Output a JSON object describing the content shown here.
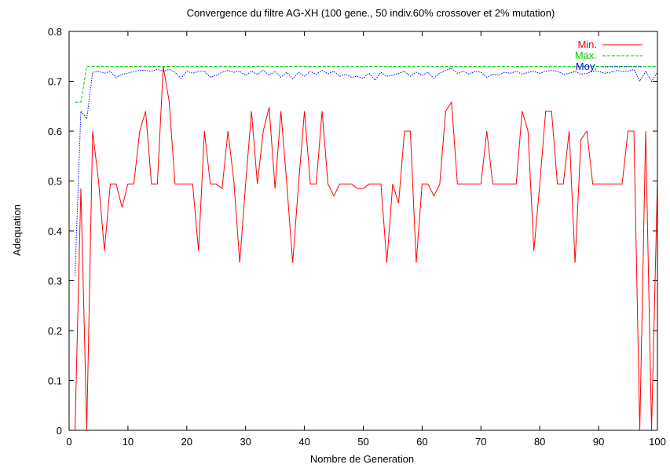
{
  "chart_data": {
    "type": "line",
    "title": "Convergence du filtre AG-XH (100 gene., 50 indiv.60% crossover et 2% mutation)",
    "xlabel": "Nombre de Generation",
    "ylabel": "Adequation",
    "xlim": [
      0,
      100
    ],
    "ylim": [
      0,
      0.8
    ],
    "xticks": [
      "0",
      "10",
      "20",
      "30",
      "40",
      "50",
      "60",
      "70",
      "80",
      "90",
      "100"
    ],
    "yticks": [
      "0",
      "0.1",
      "0.2",
      "0.3",
      "0.4",
      "0.5",
      "0.6",
      "0.7",
      "0.8"
    ],
    "grid": false,
    "legend_position": "top-right",
    "x": [
      1,
      2,
      3,
      4,
      5,
      6,
      7,
      8,
      9,
      10,
      11,
      12,
      13,
      14,
      15,
      16,
      17,
      18,
      19,
      20,
      21,
      22,
      23,
      24,
      25,
      26,
      27,
      28,
      29,
      30,
      31,
      32,
      33,
      34,
      35,
      36,
      37,
      38,
      39,
      40,
      41,
      42,
      43,
      44,
      45,
      46,
      47,
      48,
      49,
      50,
      51,
      52,
      53,
      54,
      55,
      56,
      57,
      58,
      59,
      60,
      61,
      62,
      63,
      64,
      65,
      66,
      67,
      68,
      69,
      70,
      71,
      72,
      73,
      74,
      75,
      76,
      77,
      78,
      79,
      80,
      81,
      82,
      83,
      84,
      85,
      86,
      87,
      88,
      89,
      90,
      91,
      92,
      93,
      94,
      95,
      96,
      97,
      98,
      99,
      100
    ],
    "series": [
      {
        "name": "Min.",
        "color": "#ff0000",
        "dash": "solid",
        "values": [
          0.0,
          0.485,
          0.0,
          0.6,
          0.5,
          0.36,
          0.494,
          0.494,
          0.447,
          0.494,
          0.494,
          0.6,
          0.64,
          0.494,
          0.494,
          0.73,
          0.66,
          0.494,
          0.494,
          0.494,
          0.494,
          0.36,
          0.6,
          0.494,
          0.494,
          0.485,
          0.6,
          0.5,
          0.336,
          0.494,
          0.64,
          0.494,
          0.6,
          0.648,
          0.485,
          0.64,
          0.494,
          0.336,
          0.494,
          0.64,
          0.494,
          0.494,
          0.64,
          0.494,
          0.47,
          0.494,
          0.494,
          0.494,
          0.485,
          0.485,
          0.494,
          0.494,
          0.494,
          0.336,
          0.494,
          0.455,
          0.6,
          0.6,
          0.336,
          0.494,
          0.494,
          0.47,
          0.494,
          0.64,
          0.658,
          0.494,
          0.494,
          0.494,
          0.494,
          0.494,
          0.6,
          0.494,
          0.494,
          0.494,
          0.494,
          0.494,
          0.64,
          0.6,
          0.36,
          0.494,
          0.64,
          0.64,
          0.494,
          0.494,
          0.6,
          0.336,
          0.583,
          0.6,
          0.494,
          0.494,
          0.494,
          0.494,
          0.494,
          0.494,
          0.6,
          0.6,
          0.0,
          0.6,
          0.0,
          0.5
        ]
      },
      {
        "name": "Max.",
        "color": "#00cc00",
        "dash": "dashed",
        "values": [
          0.658,
          0.658,
          0.73,
          0.73,
          0.73,
          0.73,
          0.73,
          0.73,
          0.73,
          0.73,
          0.73,
          0.73,
          0.73,
          0.73,
          0.73,
          0.73,
          0.73,
          0.73,
          0.73,
          0.73,
          0.73,
          0.73,
          0.73,
          0.73,
          0.73,
          0.73,
          0.73,
          0.73,
          0.73,
          0.73,
          0.73,
          0.73,
          0.73,
          0.73,
          0.73,
          0.73,
          0.73,
          0.73,
          0.73,
          0.73,
          0.73,
          0.73,
          0.73,
          0.73,
          0.73,
          0.73,
          0.73,
          0.73,
          0.73,
          0.73,
          0.73,
          0.73,
          0.73,
          0.73,
          0.73,
          0.73,
          0.73,
          0.73,
          0.73,
          0.73,
          0.73,
          0.73,
          0.73,
          0.73,
          0.73,
          0.73,
          0.73,
          0.73,
          0.73,
          0.73,
          0.73,
          0.73,
          0.73,
          0.73,
          0.73,
          0.73,
          0.73,
          0.73,
          0.73,
          0.73,
          0.73,
          0.73,
          0.73,
          0.73,
          0.73,
          0.73,
          0.73,
          0.73,
          0.73,
          0.73,
          0.73,
          0.73,
          0.73,
          0.73,
          0.73,
          0.73,
          0.73,
          0.73,
          0.73,
          0.73
        ]
      },
      {
        "name": "Moy.",
        "color": "#0000ff",
        "dash": "dotted",
        "values": [
          0.31,
          0.64,
          0.625,
          0.718,
          0.72,
          0.716,
          0.72,
          0.707,
          0.714,
          0.716,
          0.72,
          0.722,
          0.722,
          0.72,
          0.724,
          0.72,
          0.724,
          0.718,
          0.706,
          0.72,
          0.716,
          0.72,
          0.72,
          0.708,
          0.712,
          0.718,
          0.722,
          0.718,
          0.72,
          0.712,
          0.72,
          0.714,
          0.722,
          0.712,
          0.72,
          0.708,
          0.718,
          0.705,
          0.718,
          0.71,
          0.72,
          0.714,
          0.722,
          0.715,
          0.72,
          0.71,
          0.714,
          0.708,
          0.71,
          0.706,
          0.716,
          0.702,
          0.718,
          0.71,
          0.712,
          0.716,
          0.72,
          0.71,
          0.718,
          0.712,
          0.718,
          0.706,
          0.716,
          0.722,
          0.726,
          0.716,
          0.72,
          0.714,
          0.72,
          0.718,
          0.708,
          0.714,
          0.712,
          0.718,
          0.716,
          0.72,
          0.714,
          0.718,
          0.72,
          0.716,
          0.72,
          0.722,
          0.72,
          0.714,
          0.716,
          0.72,
          0.714,
          0.716,
          0.72,
          0.72,
          0.716,
          0.718,
          0.722,
          0.72,
          0.72,
          0.724,
          0.7,
          0.72,
          0.7,
          0.718
        ]
      }
    ]
  }
}
